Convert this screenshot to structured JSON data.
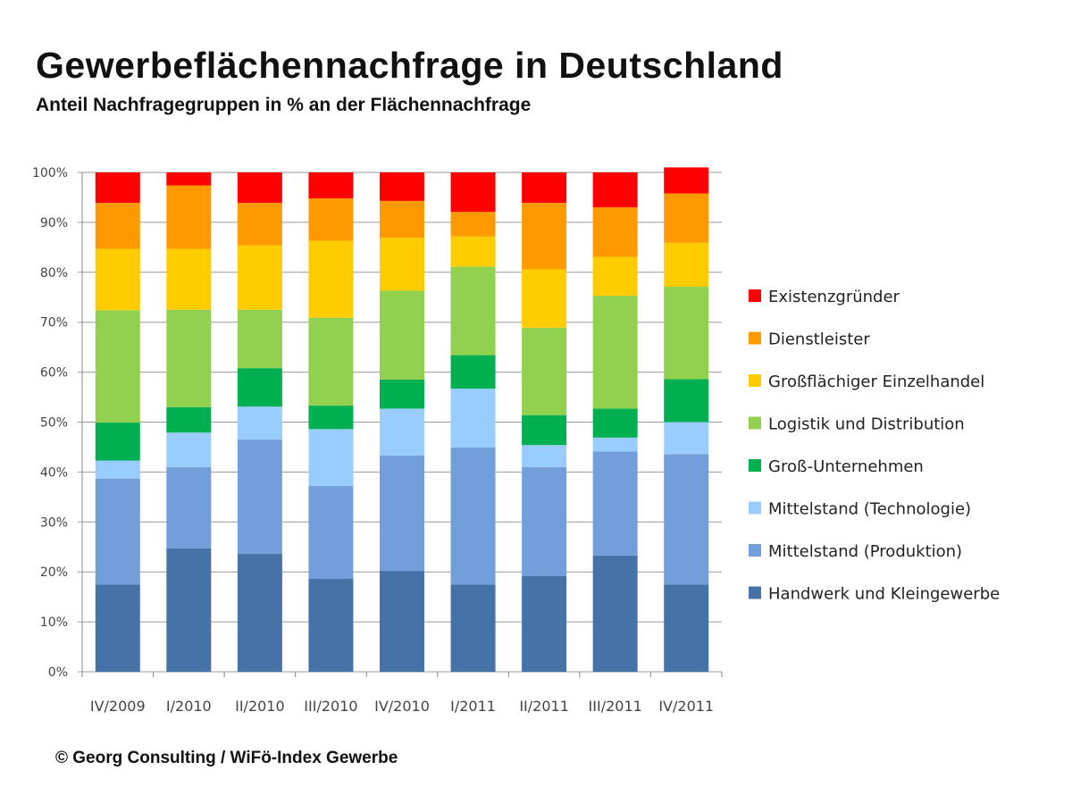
{
  "header": {
    "title": "Gewerbeflächennachfrage in Deutschland",
    "subtitle": "Anteil Nachfragegruppen in % an der Flächennachfrage"
  },
  "footer": "© Georg Consulting / WiFö-Index Gewerbe",
  "chart_data": {
    "type": "bar",
    "stacked": true,
    "title": "Gewerbeflächennachfrage in Deutschland",
    "subtitle": "Anteil Nachfragegruppen in % an der Flächennachfrage",
    "xlabel": "",
    "ylabel": "",
    "ylim": [
      0,
      100
    ],
    "yticks": [
      "0%",
      "10%",
      "20%",
      "30%",
      "40%",
      "50%",
      "60%",
      "70%",
      "80%",
      "90%",
      "100%"
    ],
    "grid": true,
    "legend_position": "right",
    "categories": [
      "IV/2009",
      "I/2010",
      "II/2010",
      "III/2010",
      "IV/2010",
      "I/2011",
      "II/2011",
      "III/2011",
      "IV/2011"
    ],
    "series": [
      {
        "name": "Handwerk und Kleingewerbe",
        "color": "#4572a7",
        "values": [
          17.5,
          24.7,
          23.6,
          18.6,
          20.2,
          17.5,
          19.2,
          23.3,
          17.5
        ]
      },
      {
        "name": "Mittelstand (Produktion)",
        "color": "#729fd9",
        "values": [
          21.2,
          16.3,
          22.9,
          18.6,
          23.1,
          27.4,
          21.8,
          20.8,
          26.1
        ]
      },
      {
        "name": "Mittelstand (Technologie)",
        "color": "#99ccff",
        "values": [
          3.6,
          6.9,
          6.6,
          11.4,
          9.4,
          11.8,
          4.4,
          2.8,
          6.4
        ]
      },
      {
        "name": "Groß-Unternehmen",
        "color": "#00b050",
        "values": [
          7.6,
          5.1,
          7.7,
          4.7,
          5.8,
          6.7,
          6.0,
          5.8,
          8.6
        ]
      },
      {
        "name": "Logistik und Distribution",
        "color": "#92d050",
        "values": [
          22.5,
          19.5,
          11.7,
          17.6,
          17.8,
          17.7,
          17.5,
          22.6,
          18.5
        ]
      },
      {
        "name": "Großflächiger Einzelhandel",
        "color": "#ffcc00",
        "values": [
          12.3,
          12.2,
          12.9,
          15.4,
          10.6,
          6.1,
          11.7,
          7.8,
          8.8
        ]
      },
      {
        "name": "Dienstleister",
        "color": "#ff9900",
        "values": [
          9.2,
          12.7,
          8.5,
          8.5,
          7.4,
          4.9,
          13.3,
          9.9,
          9.9
        ]
      },
      {
        "name": "Existenzgründer",
        "color": "#ff0000",
        "values": [
          6.1,
          2.6,
          6.1,
          5.2,
          5.7,
          7.9,
          6.1,
          7.0,
          5.2
        ]
      }
    ]
  }
}
